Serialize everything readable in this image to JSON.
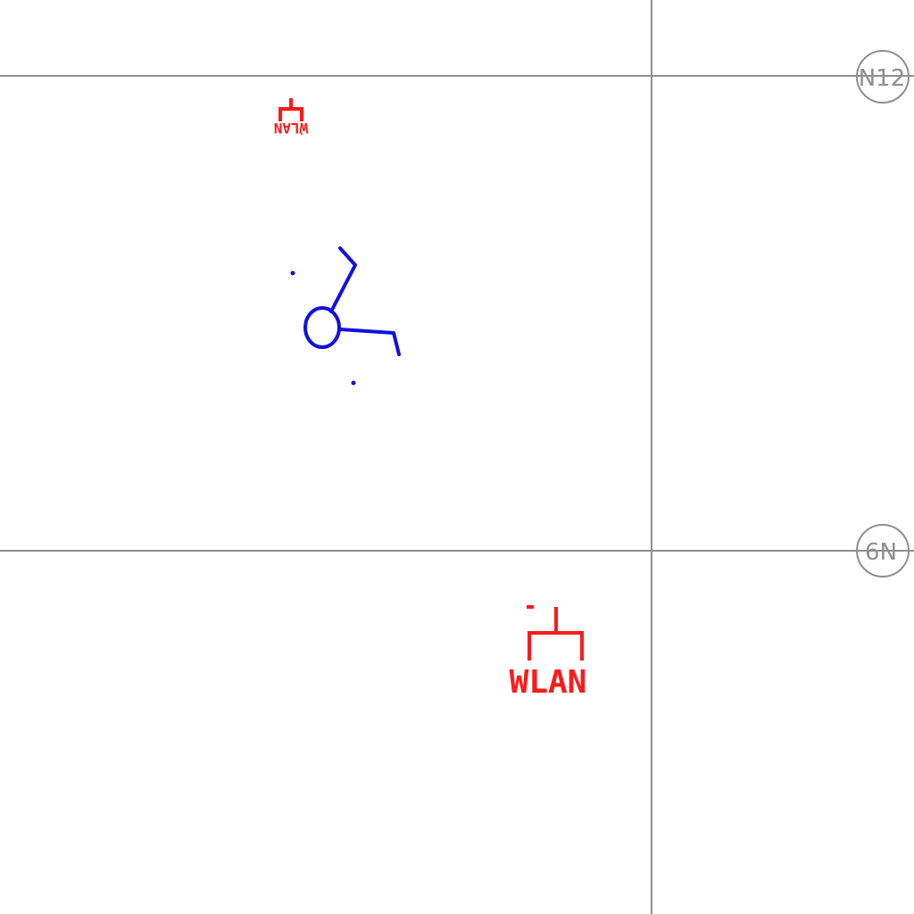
{
  "grid": {
    "bubbles": [
      {
        "label": "N12"
      },
      {
        "label": "N9"
      }
    ]
  },
  "wlan_symbols": [
    {
      "label": "WLAN",
      "orientation": "upright"
    },
    {
      "label": "WLAN",
      "orientation": "rotated-180"
    }
  ],
  "colors": {
    "grid": "#8f8f8f",
    "wlan": "#ff1a1a",
    "fixture": "#1010e0"
  }
}
